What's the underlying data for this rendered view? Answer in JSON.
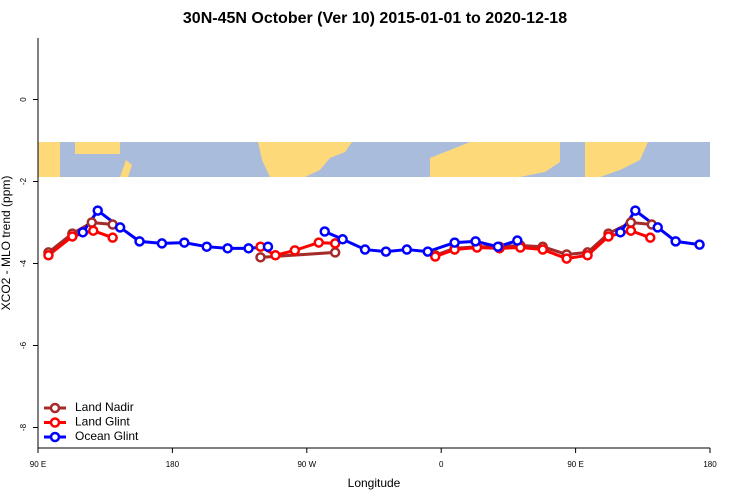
{
  "chart_data": {
    "type": "line",
    "title": "30N-45N October (Ver 10)   2015-01-01 to 2020-12-18",
    "x_label": "Longitude",
    "y_label": "XCO2 - MLO trend (ppm)",
    "xlim": [
      90,
      540
    ],
    "ylim": [
      -8.5,
      1.5
    ],
    "xticks": [
      {
        "value": 90,
        "label": "90 E"
      },
      {
        "value": 180,
        "label": "180"
      },
      {
        "value": 270,
        "label": "90 W"
      },
      {
        "value": 360,
        "label": "0"
      },
      {
        "value": 450,
        "label": "90 E"
      },
      {
        "value": 540,
        "label": "180"
      }
    ],
    "yticks": [
      -8,
      -6,
      -4,
      -2,
      0
    ],
    "legend": "bottom-left",
    "series": [
      {
        "name": "Land Nadir",
        "color": "#a52a2a",
        "x": [
          97,
          113,
          126,
          140,
          null,
          239,
          289,
          null,
          356,
          369,
          384,
          399,
          413,
          428,
          444,
          458,
          472,
          487,
          501
        ],
        "values": [
          -3.73,
          -3.27,
          -3.0,
          -3.05,
          null,
          -3.85,
          -3.73,
          null,
          -3.8,
          -3.63,
          -3.59,
          -3.59,
          -3.56,
          -3.59,
          -3.78,
          -3.73,
          -3.27,
          -3.0,
          -3.05
        ]
      },
      {
        "name": "Land Glint",
        "color": "#ff0000",
        "x": [
          97,
          113,
          127,
          140,
          null,
          239,
          249,
          262,
          278,
          289,
          null,
          356,
          369,
          384,
          399,
          413,
          428,
          444,
          458,
          472,
          487,
          500
        ],
        "values": [
          -3.8,
          -3.34,
          -3.2,
          -3.37,
          null,
          -3.59,
          -3.8,
          -3.68,
          -3.49,
          -3.51,
          null,
          -3.83,
          -3.66,
          -3.61,
          -3.63,
          -3.61,
          -3.66,
          -3.88,
          -3.8,
          -3.34,
          -3.2,
          -3.37
        ]
      },
      {
        "name": "Ocean Glint",
        "color": "#0000ff",
        "x": [
          120,
          130,
          145,
          158,
          173,
          188,
          203,
          217,
          231,
          244,
          null,
          282,
          294,
          309,
          323,
          337,
          351,
          369,
          383,
          398,
          411,
          null,
          480,
          490,
          505,
          517,
          533
        ],
        "values": [
          -3.24,
          -2.71,
          -3.12,
          -3.46,
          -3.51,
          -3.49,
          -3.59,
          -3.63,
          -3.63,
          -3.59,
          null,
          -3.22,
          -3.41,
          -3.66,
          -3.71,
          -3.66,
          -3.71,
          -3.49,
          -3.46,
          -3.59,
          -3.44,
          null,
          -3.24,
          -2.71,
          -3.12,
          -3.46,
          -3.54
        ]
      }
    ]
  }
}
